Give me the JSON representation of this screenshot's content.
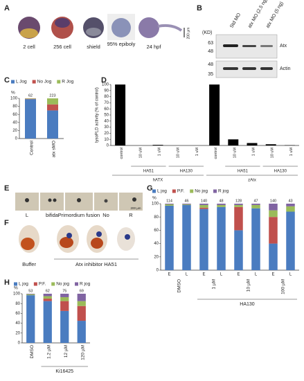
{
  "panels": {
    "letters": [
      "A",
      "B",
      "C",
      "D",
      "E",
      "F",
      "G",
      "H"
    ],
    "a_captions": [
      "2 cell",
      "256 cell",
      "shield",
      "95% epiboly",
      "24 hpf"
    ],
    "a_scale": "200 µm",
    "b_lanes": [
      "Std MO",
      "atx MO (2.5 ng)",
      "atx MO (5 ng)"
    ],
    "b_unit": "(KD)",
    "b_markers_top": [
      "63",
      "48"
    ],
    "b_markers_bottom": [
      "48",
      "35"
    ],
    "b_bands": [
      "Atx",
      "Actin"
    ],
    "e_captions": [
      "L",
      "bifida",
      "Primordium fusion",
      "No",
      "R"
    ],
    "e_scale": "200 µm",
    "f_captions": [
      "Buffer",
      "Atx inhibitor HA51"
    ]
  },
  "chart_data": [
    {
      "type": "bar",
      "stacked": true,
      "ylabel": "%",
      "categories": [
        "Control",
        "atx sMO"
      ],
      "n": [
        62,
        223
      ],
      "series": [
        {
          "name": "L Jog",
          "color": "#4a7cc0",
          "values": [
            98,
            70
          ]
        },
        {
          "name": "No Jog",
          "color": "#c0504d",
          "values": [
            1,
            15
          ]
        },
        {
          "name": "R Jog",
          "color": "#9bbb59",
          "values": [
            1,
            15
          ]
        }
      ],
      "ylim": [
        0,
        100
      ],
      "yticks": [
        0,
        20,
        40,
        60,
        80,
        100
      ]
    },
    {
      "type": "bar",
      "ylabel": "lysoPLD activity (% of control)",
      "color": "#000000",
      "categories": [
        "control",
        "10 uM",
        "1 uM",
        "10 uM",
        "1 uM",
        "control",
        "10 uM",
        "1 uM",
        "10 uM",
        "1 uM"
      ],
      "values": [
        100,
        0,
        1,
        0,
        0,
        100,
        10,
        4,
        2,
        0.5
      ],
      "subgroups": [
        "HA51",
        "HA130",
        "HA51",
        "HA130"
      ],
      "groups": [
        "hATX",
        "zAtx"
      ],
      "ylim": [
        0,
        100
      ],
      "yticks": [
        0,
        10,
        20,
        30,
        40,
        50,
        60,
        70,
        80,
        90,
        100
      ]
    },
    {
      "type": "bar",
      "stacked": true,
      "ylabel": "%",
      "categories": [
        "E",
        "L",
        "E",
        "L",
        "E",
        "L",
        "E",
        "L"
      ],
      "n": [
        114,
        46,
        140,
        48,
        128,
        47,
        140,
        43
      ],
      "doses": [
        "DMSO",
        "1 µM",
        "10 µM",
        "100 µM"
      ],
      "group": "HA130",
      "series": [
        {
          "name": "L jog",
          "color": "#4a7cc0",
          "values": [
            97,
            98,
            92,
            95,
            60,
            93,
            40,
            88
          ]
        },
        {
          "name": "P.F.",
          "color": "#c0504d",
          "values": [
            0,
            0,
            2,
            0,
            35,
            0,
            40,
            0
          ]
        },
        {
          "name": "No jog",
          "color": "#9bbb59",
          "values": [
            2,
            1,
            4,
            3,
            3,
            5,
            10,
            8
          ]
        },
        {
          "name": "R jog",
          "color": "#8064a2",
          "values": [
            1,
            1,
            2,
            2,
            2,
            2,
            10,
            4
          ]
        }
      ],
      "ylim": [
        0,
        100
      ],
      "yticks": [
        0,
        20,
        40,
        60,
        80,
        100
      ]
    },
    {
      "type": "bar",
      "stacked": true,
      "ylabel": "%",
      "categories": [
        "DMSO",
        "1.2 µM",
        "12 µM",
        "120 µM"
      ],
      "n": [
        53,
        62,
        75,
        69
      ],
      "group": "Ki16425",
      "series": [
        {
          "name": "L jog",
          "color": "#4a7cc0",
          "values": [
            97,
            85,
            65,
            45
          ]
        },
        {
          "name": "P.F.",
          "color": "#c0504d",
          "values": [
            0,
            5,
            20,
            30
          ]
        },
        {
          "name": "No jog",
          "color": "#9bbb59",
          "values": [
            2,
            5,
            8,
            10
          ]
        },
        {
          "name": "R jog",
          "color": "#8064a2",
          "values": [
            1,
            5,
            7,
            15
          ]
        }
      ],
      "ylim": [
        0,
        100
      ],
      "yticks": [
        0,
        20,
        40,
        60,
        80,
        100
      ]
    }
  ]
}
